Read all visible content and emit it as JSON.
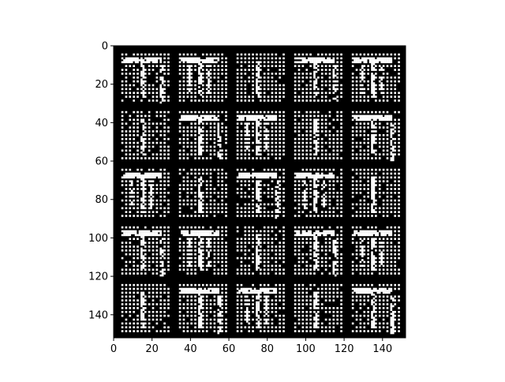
{
  "chart_data": {
    "type": "heatmap",
    "title": "",
    "xlabel": "",
    "ylabel": "",
    "colormap": "gray",
    "xlim": [
      0,
      152
    ],
    "ylim": [
      152,
      0
    ],
    "x_ticks": [
      "0",
      "20",
      "40",
      "60",
      "80",
      "100",
      "120",
      "140"
    ],
    "y_ticks": [
      "0",
      "20",
      "40",
      "60",
      "80",
      "100",
      "120",
      "140"
    ],
    "grid": {
      "rows": 5,
      "cols": 5,
      "tile_size": 28,
      "tile_gap": 2,
      "description_values": "5x5 mosaic of 28x28 binary generated-image tiles with 2px black separators"
    },
    "colors": {
      "background": "#000000",
      "foreground": "#ffffff"
    }
  }
}
